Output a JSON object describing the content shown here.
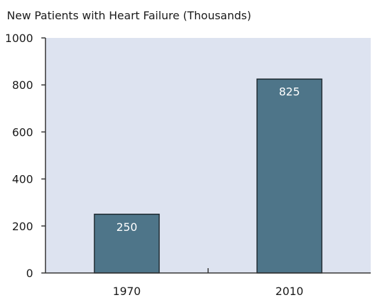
{
  "chart_data": {
    "type": "bar",
    "title": "New Patients with Heart Failure (Thousands)",
    "xlabel": "",
    "ylabel": "",
    "categories": [
      "1970",
      "2010"
    ],
    "values": [
      250,
      825
    ],
    "data_labels": [
      "250",
      "825"
    ],
    "ylim": [
      0,
      1000
    ],
    "yticks": [
      0,
      200,
      400,
      600,
      800,
      1000
    ],
    "ytick_labels": [
      "0",
      "200",
      "400",
      "600",
      "800",
      "1000"
    ],
    "grid": false,
    "legend": "none",
    "colors": {
      "plot_background": "#dde3f0",
      "bar_fill": "#4e7589",
      "bar_stroke": "#1f2a30",
      "axis": "#333333",
      "data_label_text": "#ffffff"
    }
  }
}
